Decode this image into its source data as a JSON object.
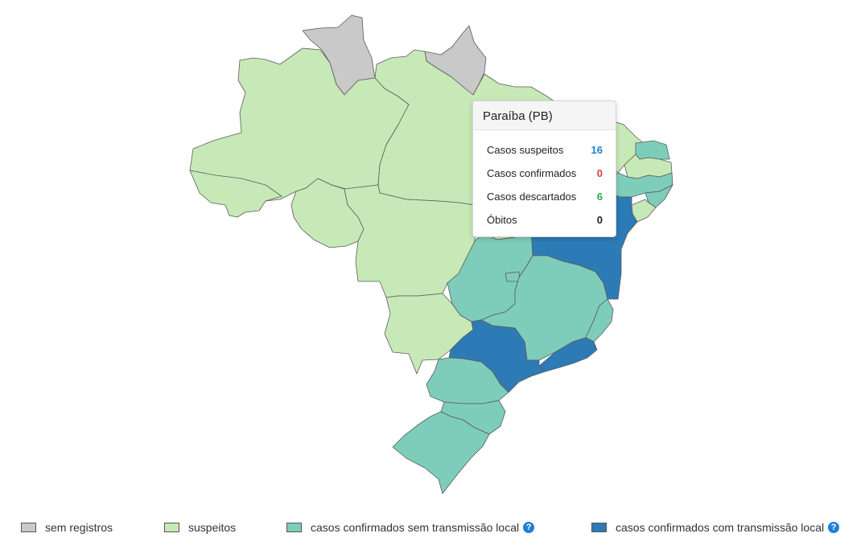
{
  "colors": {
    "sem_registros": "#c9c9c9",
    "suspeitos": "#c7e9b8",
    "confirmados_sem_transmissao": "#7ecdba",
    "confirmados_com_transmissao": "#2c7bb6"
  },
  "tooltip": {
    "title": "Paraíba (PB)",
    "rows": [
      {
        "label": "Casos suspeitos",
        "value": "16"
      },
      {
        "label": "Casos confirmados",
        "value": "0"
      },
      {
        "label": "Casos descartados",
        "value": "6"
      },
      {
        "label": "Óbitos",
        "value": "0"
      }
    ]
  },
  "legend": [
    {
      "label": "sem registros",
      "has_help": false
    },
    {
      "label": "suspeitos",
      "has_help": false
    },
    {
      "label": "casos confirmados sem transmissão local",
      "has_help": true
    },
    {
      "label": "casos confirmados com transmissão local",
      "has_help": true
    }
  ],
  "help_icon": "?",
  "states": [
    {
      "uf": "RR",
      "status": "sem_registros"
    },
    {
      "uf": "AP",
      "status": "sem_registros"
    },
    {
      "uf": "AM",
      "status": "suspeitos"
    },
    {
      "uf": "PA",
      "status": "suspeitos"
    },
    {
      "uf": "AC",
      "status": "suspeitos"
    },
    {
      "uf": "RO",
      "status": "suspeitos"
    },
    {
      "uf": "MT",
      "status": "suspeitos"
    },
    {
      "uf": "MS",
      "status": "suspeitos"
    },
    {
      "uf": "TO",
      "status": "suspeitos"
    },
    {
      "uf": "MA",
      "status": "suspeitos"
    },
    {
      "uf": "PI",
      "status": "suspeitos"
    },
    {
      "uf": "CE",
      "status": "suspeitos"
    },
    {
      "uf": "PB",
      "status": "suspeitos"
    },
    {
      "uf": "RN",
      "status": "confirmados_sem_transmissao"
    },
    {
      "uf": "PE",
      "status": "confirmados_sem_transmissao"
    },
    {
      "uf": "AL",
      "status": "confirmados_sem_transmissao"
    },
    {
      "uf": "SE",
      "status": "suspeitos"
    },
    {
      "uf": "BA",
      "status": "confirmados_com_transmissao"
    },
    {
      "uf": "GO",
      "status": "confirmados_sem_transmissao"
    },
    {
      "uf": "DF",
      "status": "confirmados_sem_transmissao"
    },
    {
      "uf": "MG",
      "status": "confirmados_sem_transmissao"
    },
    {
      "uf": "ES",
      "status": "confirmados_sem_transmissao"
    },
    {
      "uf": "RJ",
      "status": "confirmados_com_transmissao"
    },
    {
      "uf": "SP",
      "status": "confirmados_com_transmissao"
    },
    {
      "uf": "PR",
      "status": "confirmados_sem_transmissao"
    },
    {
      "uf": "SC",
      "status": "confirmados_sem_transmissao"
    },
    {
      "uf": "RS",
      "status": "confirmados_sem_transmissao"
    }
  ]
}
